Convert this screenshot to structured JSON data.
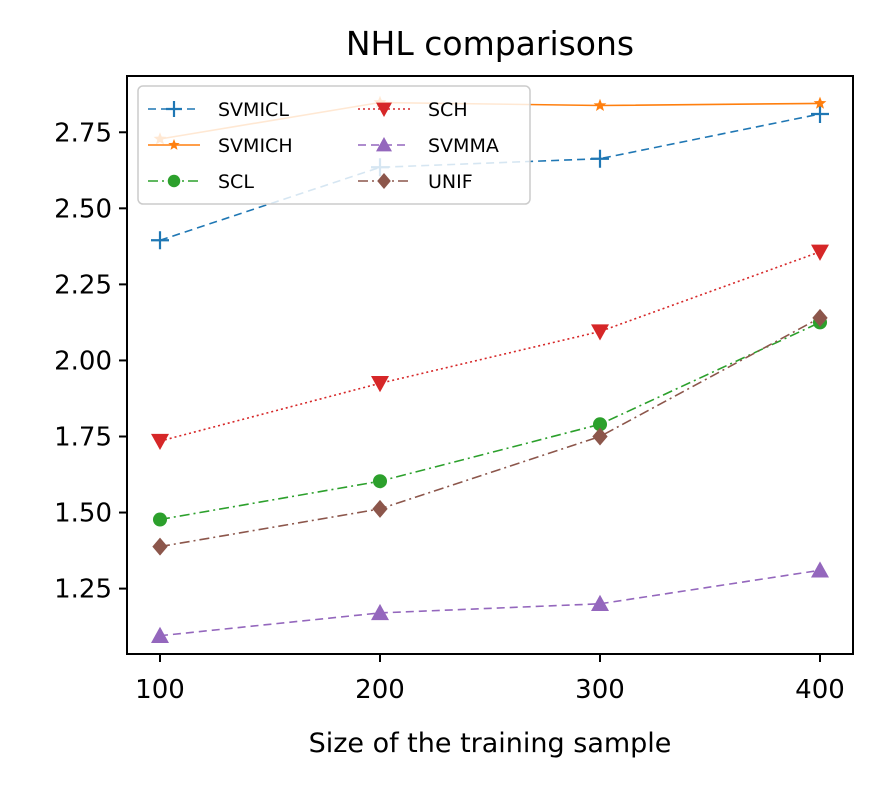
{
  "chart_data": {
    "type": "line",
    "title": "NHL comparisons",
    "xlabel": "Size of the training sample",
    "ylabel": "",
    "x": [
      100,
      200,
      300,
      400
    ],
    "xlim": [
      85,
      415
    ],
    "ylim": [
      1.035,
      2.935
    ],
    "xticks": [
      100,
      200,
      300,
      400
    ],
    "xtick_labels": [
      "100",
      "200",
      "300",
      "400"
    ],
    "yticks": [
      1.25,
      1.5,
      1.75,
      2.0,
      2.25,
      2.5,
      2.75
    ],
    "ytick_labels": [
      "1.25",
      "1.50",
      "1.75",
      "2.00",
      "2.25",
      "2.50",
      "2.75"
    ],
    "grid": false,
    "legend_position": "top-left",
    "series": [
      {
        "name": "SVMICL",
        "values": [
          2.395,
          2.635,
          2.663,
          2.81
        ],
        "color": "#1f77b4",
        "marker": "plus",
        "dash": "8,5"
      },
      {
        "name": "SVMICH",
        "values": [
          2.728,
          2.848,
          2.838,
          2.845
        ],
        "color": "#ff7f0e",
        "marker": "star",
        "dash": ""
      },
      {
        "name": "SCL",
        "values": [
          1.477,
          1.603,
          1.79,
          2.125
        ],
        "color": "#2ca02c",
        "marker": "circle",
        "dash": "10,4,2,4"
      },
      {
        "name": "SCH",
        "values": [
          1.735,
          1.925,
          2.095,
          2.357
        ],
        "color": "#d62728",
        "marker": "triangle-down",
        "dash": "2,3"
      },
      {
        "name": "SVMMA",
        "values": [
          1.095,
          1.17,
          1.2,
          1.31
        ],
        "color": "#9467bd",
        "marker": "triangle-up",
        "dash": "8,5"
      },
      {
        "name": "UNIF",
        "values": [
          1.388,
          1.512,
          1.75,
          2.14
        ],
        "color": "#8c564b",
        "marker": "diamond",
        "dash": "10,4,2,4"
      }
    ]
  }
}
